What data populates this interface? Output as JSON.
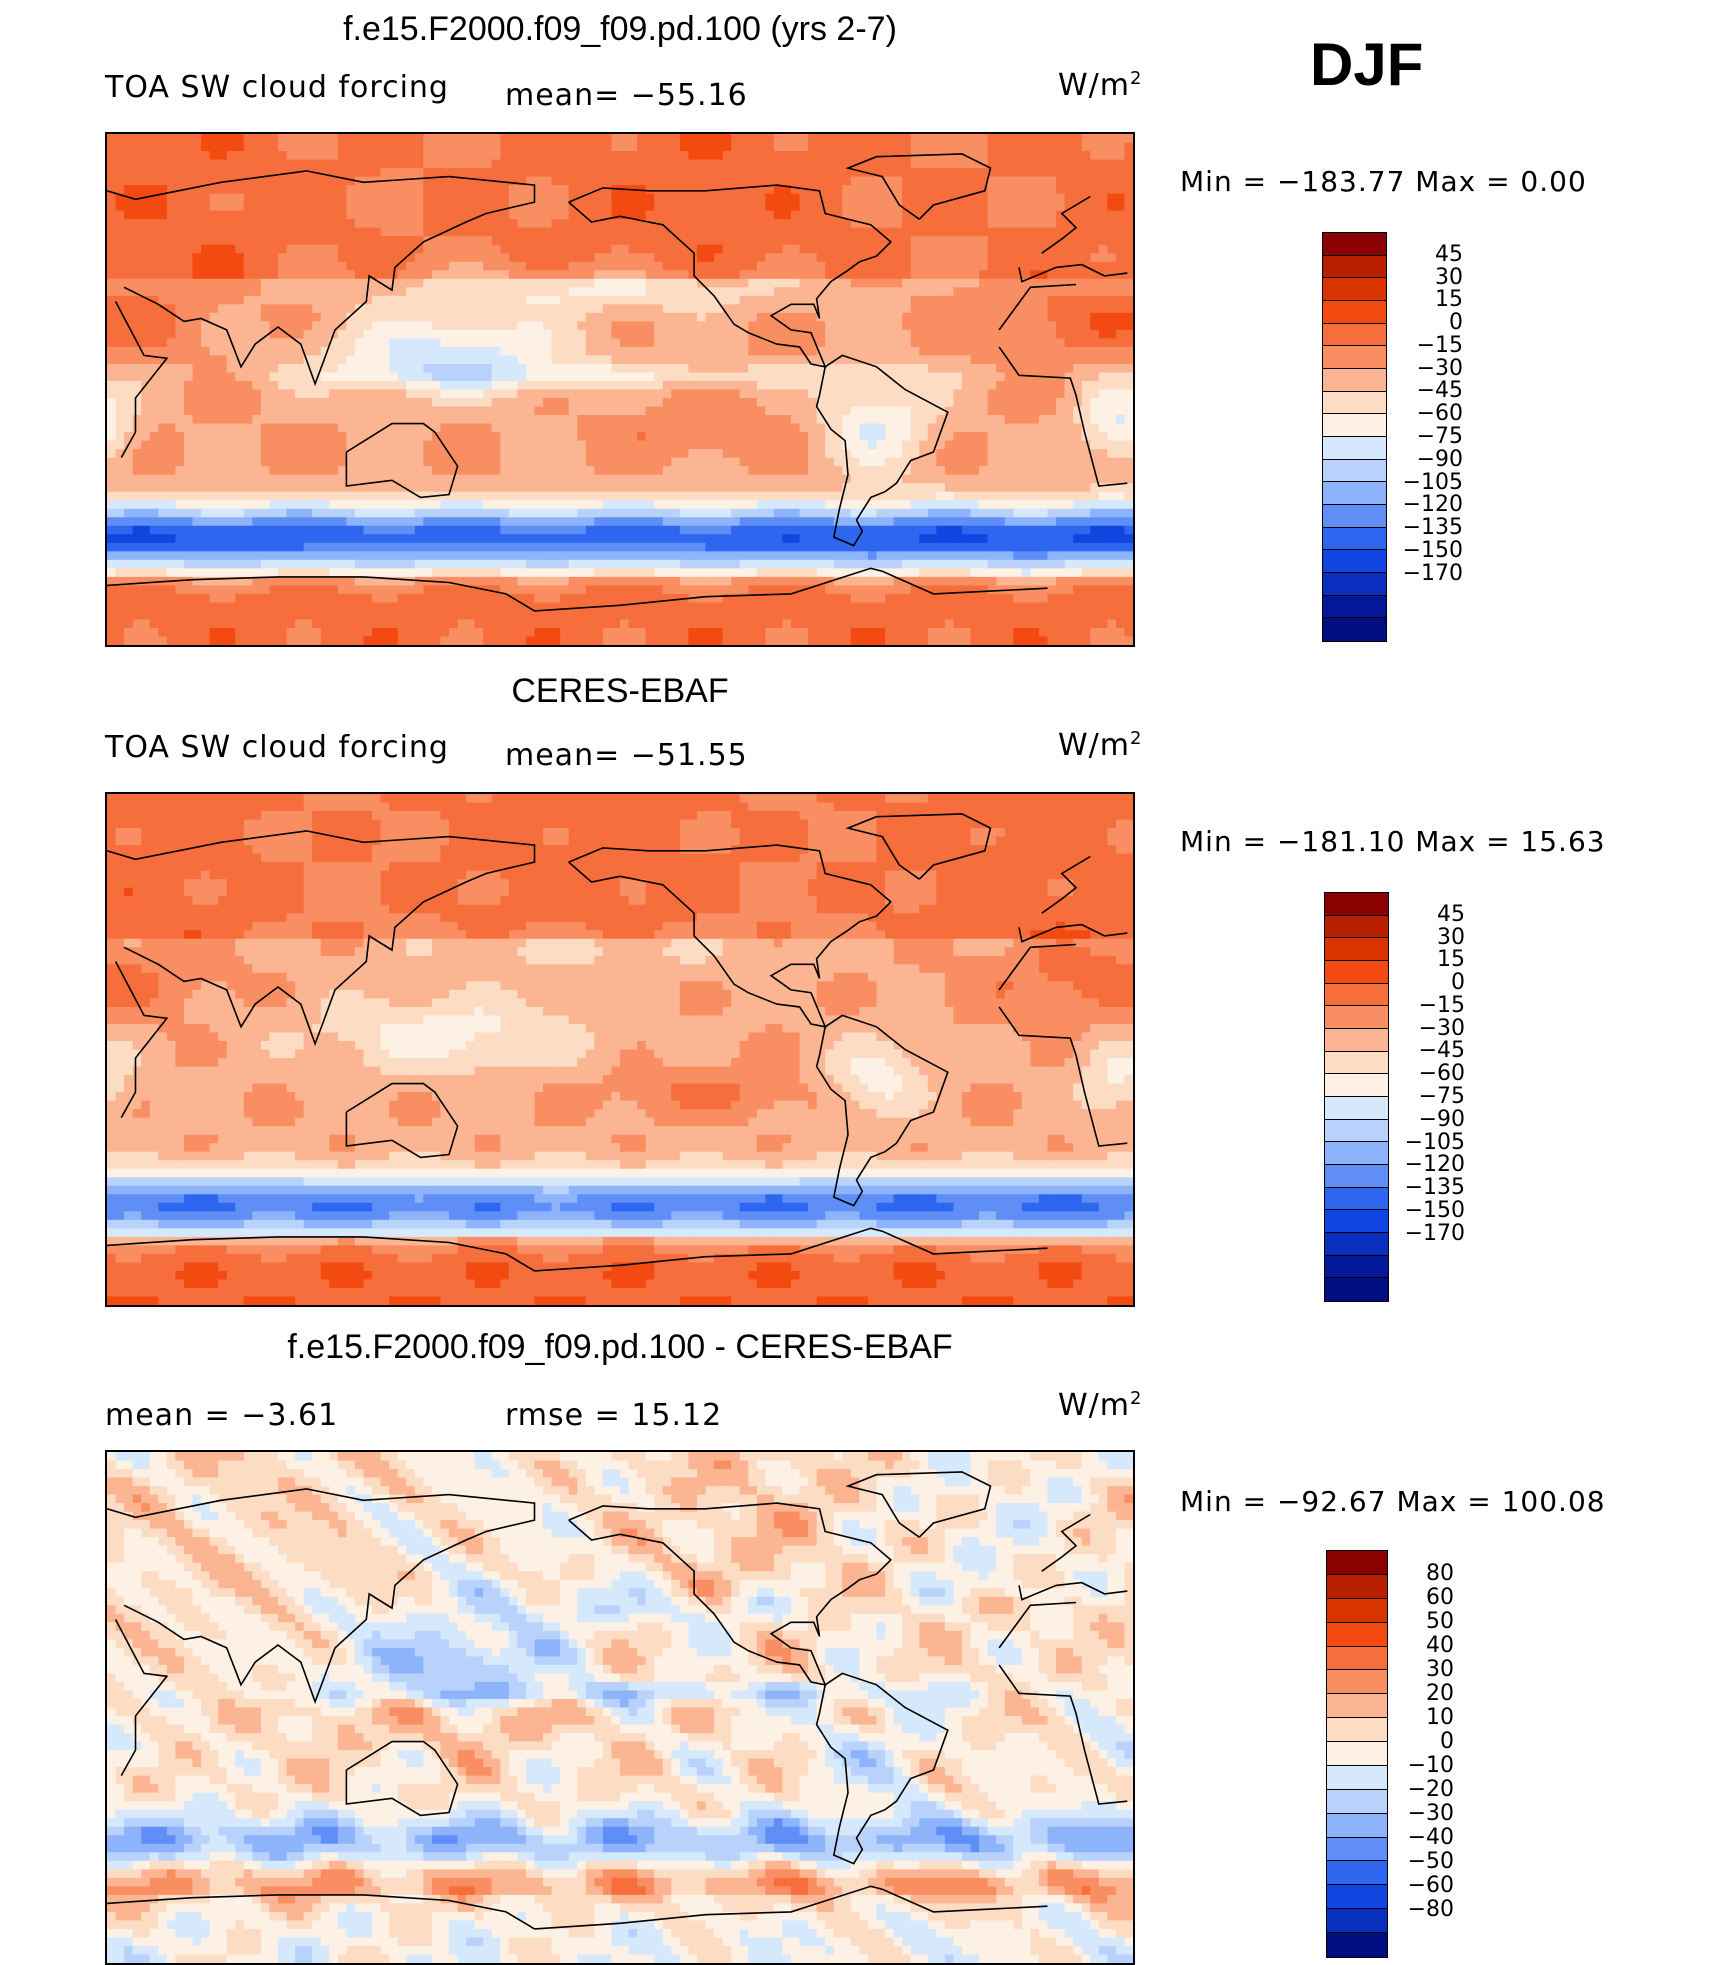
{
  "season": "DJF",
  "panels": [
    {
      "title": "f.e15.F2000.f09_f09.pd.100 (yrs 2-7)",
      "left_text": "TOA SW cloud forcing",
      "center_text": "mean=  −55.16",
      "units_base": "W/m",
      "units_exp": "2",
      "minmax_text": "Min  =  −183.77  Max  =     0.00",
      "levels": [
        "45",
        "30",
        "15",
        "0",
        "−15",
        "−30",
        "−45",
        "−60",
        "−75",
        "−90",
        "−105",
        "−120",
        "−135",
        "−150",
        "−170"
      ],
      "colors": [
        "#8b0000",
        "#b81f00",
        "#d83400",
        "#f24a10",
        "#f66e3c",
        "#f98e62",
        "#fbb592",
        "#fddcc4",
        "#fdf0e4",
        "#d6e8fc",
        "#b8d2fc",
        "#8db4fb",
        "#5e8ef6",
        "#2f66ef",
        "#1145e0",
        "#0a2fbe",
        "#05189a",
        "#000d80"
      ],
      "field": "model"
    },
    {
      "title": "CERES-EBAF",
      "left_text": "TOA SW cloud forcing",
      "center_text": "mean=  −51.55",
      "units_base": "W/m",
      "units_exp": "2",
      "minmax_text": "Min  =  −181.10  Max  =    15.63",
      "levels": [
        "45",
        "30",
        "15",
        "0",
        "−15",
        "−30",
        "−45",
        "−60",
        "−75",
        "−90",
        "−105",
        "−120",
        "−135",
        "−150",
        "−170"
      ],
      "colors": [
        "#8b0000",
        "#b81f00",
        "#d83400",
        "#f24a10",
        "#f66e3c",
        "#f98e62",
        "#fbb592",
        "#fddcc4",
        "#fdf0e4",
        "#d6e8fc",
        "#b8d2fc",
        "#8db4fb",
        "#5e8ef6",
        "#2f66ef",
        "#1145e0",
        "#0a2fbe",
        "#05189a",
        "#000d80"
      ],
      "field": "obs"
    },
    {
      "title": "f.e15.F2000.f09_f09.pd.100 - CERES-EBAF",
      "left_text": "mean  =     −3.61",
      "center_text": "rmse  =     15.12",
      "units_base": "W/m",
      "units_exp": "2",
      "minmax_text": "Min  =  −92.67  Max  =  100.08",
      "levels": [
        "80",
        "60",
        "50",
        "40",
        "30",
        "20",
        "10",
        "0",
        "−10",
        "−20",
        "−30",
        "−40",
        "−50",
        "−60",
        "−80"
      ],
      "colors": [
        "#8b0000",
        "#b81f00",
        "#d83400",
        "#f24a10",
        "#f66e3c",
        "#f98e62",
        "#fbb592",
        "#fddcc4",
        "#fdf0e4",
        "#d6e8fc",
        "#b8d2fc",
        "#8db4fb",
        "#5e8ef6",
        "#2f66ef",
        "#1145e0",
        "#0a2fbe",
        "#000d80"
      ],
      "field": "diff"
    }
  ]
}
